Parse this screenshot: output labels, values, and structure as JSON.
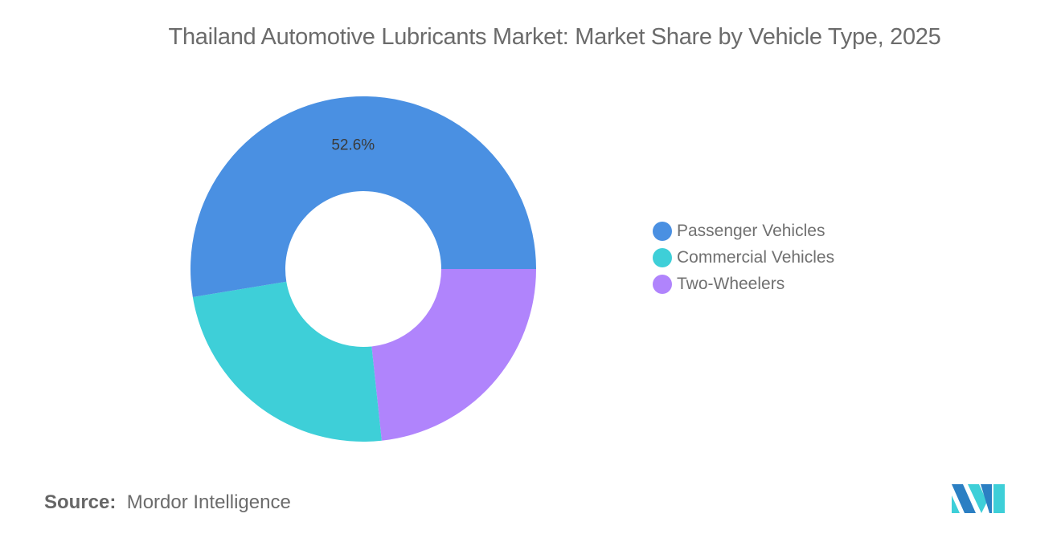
{
  "chart_data": {
    "type": "pie",
    "subtype": "donut",
    "title": "Thailand Automotive Lubricants Market: Market Share by Vehicle Type, 2025",
    "categories": [
      "Passenger Vehicles",
      "Commercial Vehicles",
      "Two-Wheelers"
    ],
    "values": [
      52.6,
      24.1,
      23.3
    ],
    "value_unit": "%",
    "data_labels": [
      "52.6%",
      "",
      ""
    ],
    "colors": [
      "#4a90e2",
      "#3ecfd8",
      "#b084fc"
    ],
    "legend_placement": "right"
  },
  "source": {
    "label": "Source:",
    "value": "Mordor Intelligence"
  },
  "logo": {
    "text": "Mordor Intelligence",
    "colors": [
      "#2b7fc3",
      "#3ecfd8"
    ]
  }
}
